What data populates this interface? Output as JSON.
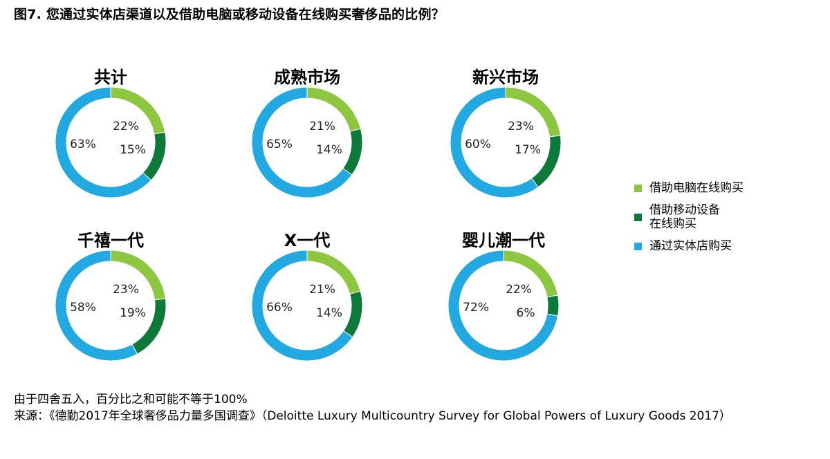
{
  "title": "图7. 您通过实体店渠道以及借助电脑或移动设备在线购买奢侈品的比例？",
  "colors": {
    "computer": "#8dc63f",
    "mobile": "#0d7a3a",
    "store": "#22a9e1"
  },
  "legend": {
    "items": [
      {
        "key": "computer",
        "lines": [
          "借助电脑在线购买"
        ]
      },
      {
        "key": "mobile",
        "lines": [
          "借助移动设备",
          "在线购买"
        ]
      },
      {
        "key": "store",
        "lines": [
          "通过实体店购买"
        ]
      }
    ]
  },
  "chart_data": [
    {
      "type": "pie",
      "variant": "donut",
      "title": "共计",
      "series": [
        {
          "name": "借助电脑在线购买",
          "value": 22
        },
        {
          "name": "借助移动设备在线购买",
          "value": 15
        },
        {
          "name": "通过实体店购买",
          "value": 63
        }
      ],
      "labels": [
        "22%",
        "15%",
        "63%"
      ]
    },
    {
      "type": "pie",
      "variant": "donut",
      "title": "成熟市场",
      "series": [
        {
          "name": "借助电脑在线购买",
          "value": 21
        },
        {
          "name": "借助移动设备在线购买",
          "value": 14
        },
        {
          "name": "通过实体店购买",
          "value": 65
        }
      ],
      "labels": [
        "21%",
        "14%",
        "65%"
      ]
    },
    {
      "type": "pie",
      "variant": "donut",
      "title": "新兴市场",
      "series": [
        {
          "name": "借助电脑在线购买",
          "value": 23
        },
        {
          "name": "借助移动设备在线购买",
          "value": 17
        },
        {
          "name": "通过实体店购买",
          "value": 60
        }
      ],
      "labels": [
        "23%",
        "17%",
        "60%"
      ]
    },
    {
      "type": "pie",
      "variant": "donut",
      "title": "千禧一代",
      "series": [
        {
          "name": "借助电脑在线购买",
          "value": 23
        },
        {
          "name": "借助移动设备在线购买",
          "value": 19
        },
        {
          "name": "通过实体店购买",
          "value": 58
        }
      ],
      "labels": [
        "23%",
        "19%",
        "58%"
      ]
    },
    {
      "type": "pie",
      "variant": "donut",
      "title": "X一代",
      "series": [
        {
          "name": "借助电脑在线购买",
          "value": 21
        },
        {
          "name": "借助移动设备在线购买",
          "value": 14
        },
        {
          "name": "通过实体店购买",
          "value": 66
        }
      ],
      "labels": [
        "21%",
        "14%",
        "66%"
      ]
    },
    {
      "type": "pie",
      "variant": "donut",
      "title": "婴儿潮一代",
      "series": [
        {
          "name": "借助电脑在线购买",
          "value": 22
        },
        {
          "name": "借助移动设备在线购买",
          "value": 6
        },
        {
          "name": "通过实体店购买",
          "value": 72
        }
      ],
      "labels": [
        "22%",
        "6%",
        "72%"
      ]
    }
  ],
  "footnote": "由于四舍五入，百分比之和可能不等于100%",
  "source": "来源：《德勤2017年全球奢侈品力量多国调查》（Deloitte Luxury Multicountry Survey for Global Powers of Luxury Goods 2017）"
}
